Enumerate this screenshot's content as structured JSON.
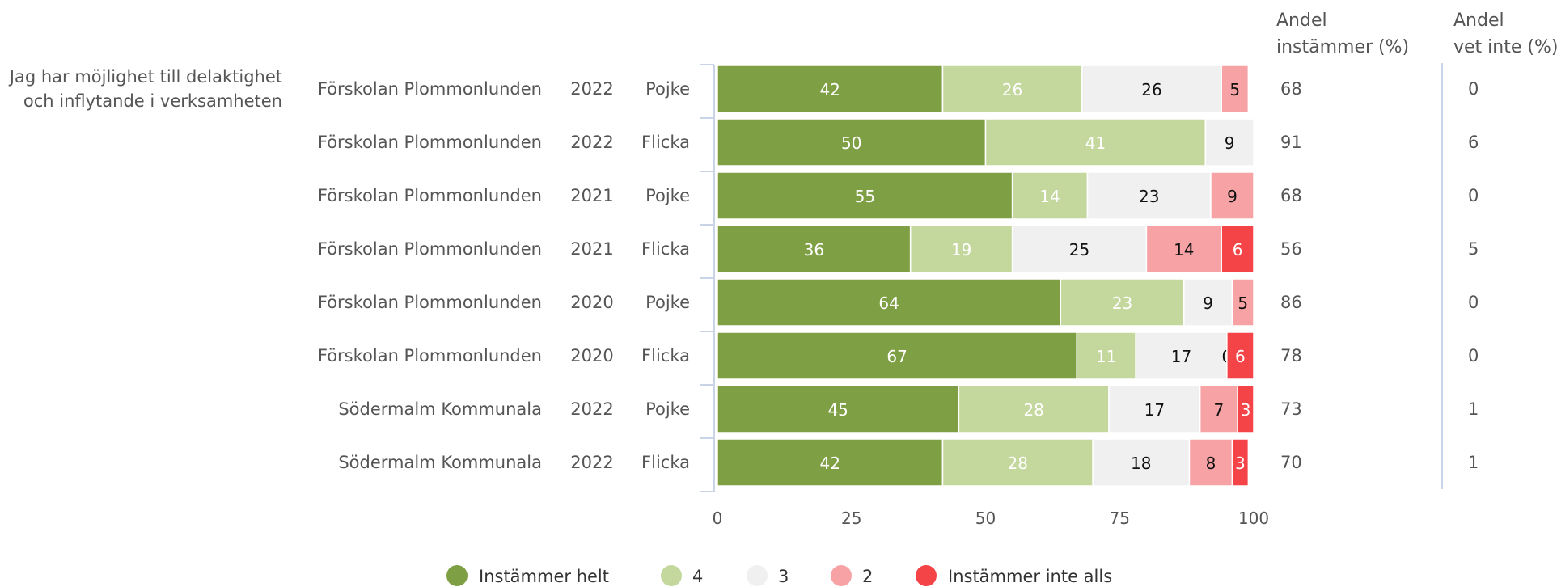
{
  "question": [
    "Jag har möjlighet till delaktighet",
    "och inflytande i verksamheten"
  ],
  "headers": {
    "agree_share": [
      "Andel",
      "instämmer (%)"
    ],
    "dont_know_share": [
      "Andel",
      "vet inte (%)"
    ]
  },
  "colors": {
    "Instämmer helt": "#7f9f45",
    "4": "#c4d89e",
    "3": "#f0f0f0",
    "2": "#f7a3a5",
    "Instämmer inte alls": "#f44448"
  },
  "chart_data": {
    "type": "bar",
    "orientation": "horizontal",
    "stacked": true,
    "rows": [
      {
        "school": "Förskolan Plommonlunden",
        "year": "2022",
        "gender": "Pojke"
      },
      {
        "school": "Förskolan Plommonlunden",
        "year": "2022",
        "gender": "Flicka"
      },
      {
        "school": "Förskolan Plommonlunden",
        "year": "2021",
        "gender": "Pojke"
      },
      {
        "school": "Förskolan Plommonlunden",
        "year": "2021",
        "gender": "Flicka"
      },
      {
        "school": "Förskolan Plommonlunden",
        "year": "2020",
        "gender": "Pojke"
      },
      {
        "school": "Förskolan Plommonlunden",
        "year": "2020",
        "gender": "Flicka"
      },
      {
        "school": "Södermalm Kommunala",
        "year": "2022",
        "gender": "Pojke"
      },
      {
        "school": "Södermalm Kommunala",
        "year": "2022",
        "gender": "Flicka"
      }
    ],
    "series": [
      {
        "name": "Instämmer helt",
        "values": [
          42,
          50,
          55,
          36,
          64,
          67,
          45,
          42
        ]
      },
      {
        "name": "4",
        "values": [
          26,
          41,
          14,
          19,
          23,
          11,
          28,
          28
        ]
      },
      {
        "name": "3",
        "values": [
          26,
          9,
          23,
          25,
          9,
          17,
          17,
          18
        ]
      },
      {
        "name": "2",
        "values": [
          5,
          0,
          9,
          14,
          5,
          0,
          7,
          8
        ]
      },
      {
        "name": "Instämmer inte alls",
        "values": [
          0,
          0,
          0,
          6,
          0,
          6,
          3,
          3
        ]
      }
    ],
    "agree_share": [
      68,
      91,
      68,
      56,
      86,
      78,
      73,
      70
    ],
    "dont_know_share": [
      0,
      6,
      0,
      5,
      0,
      0,
      1,
      1
    ],
    "xlim": [
      0,
      100
    ],
    "xticks": [
      0,
      25,
      50,
      75,
      100
    ],
    "legend_position": "bottom"
  }
}
